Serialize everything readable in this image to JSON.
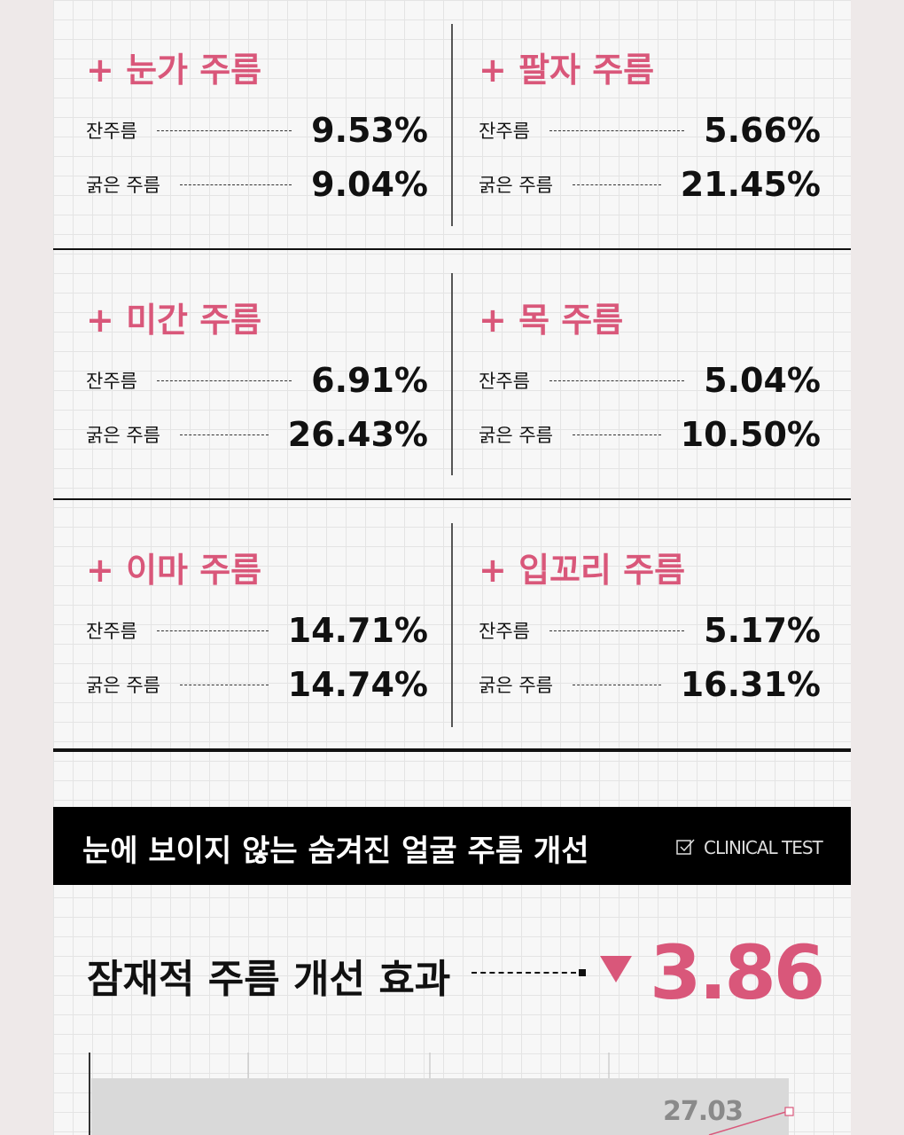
{
  "sections": [
    {
      "title": "+ 눈가 주름",
      "rows": [
        {
          "label": "잔주름",
          "value": "9.53%"
        },
        {
          "label": "굵은 주름",
          "value": "9.04%"
        }
      ]
    },
    {
      "title": "+ 팔자 주름",
      "rows": [
        {
          "label": "잔주름",
          "value": "5.66%"
        },
        {
          "label": "굵은 주름",
          "value": "21.45%"
        }
      ]
    },
    {
      "title": "+ 미간 주름",
      "rows": [
        {
          "label": "잔주름",
          "value": "6.91%"
        },
        {
          "label": "굵은 주름",
          "value": "26.43%"
        }
      ]
    },
    {
      "title": "+ 목 주름",
      "rows": [
        {
          "label": "잔주름",
          "value": "5.04%"
        },
        {
          "label": "굵은 주름",
          "value": "10.50%"
        }
      ]
    },
    {
      "title": "+ 이마 주름",
      "rows": [
        {
          "label": "잔주름",
          "value": "14.71%"
        },
        {
          "label": "굵은 주름",
          "value": "14.74%"
        }
      ]
    },
    {
      "title": "+ 입꼬리 주름",
      "rows": [
        {
          "label": "잔주름",
          "value": "5.17%"
        },
        {
          "label": "굵은 주름",
          "value": "16.31%"
        }
      ]
    }
  ],
  "banner": {
    "title": "눈에 보이지 않는 숨겨진 얼굴 주름 개선",
    "badge": "CLINICAL TEST"
  },
  "effect": {
    "label": "잠재적 주름 개선 효과",
    "value": "3.86"
  },
  "chart": {
    "value_label": "27.03"
  }
}
